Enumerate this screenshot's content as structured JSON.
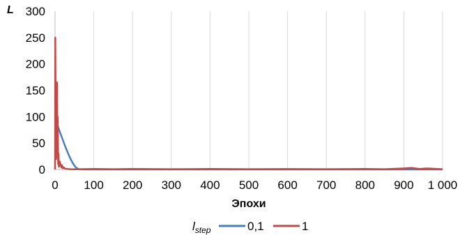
{
  "chart_data": {
    "type": "line",
    "ylabel": "L",
    "xlabel": "Эпохи",
    "xlim": [
      0,
      1000
    ],
    "ylim": [
      0,
      300
    ],
    "x_ticks": [
      0,
      100,
      200,
      300,
      400,
      500,
      600,
      700,
      800,
      900,
      1000
    ],
    "x_tick_labels": [
      "0",
      "100",
      "200",
      "300",
      "400",
      "500",
      "600",
      "700",
      "800",
      "900",
      "1 000"
    ],
    "y_ticks": [
      0,
      50,
      100,
      150,
      200,
      250,
      300
    ],
    "y_tick_labels": [
      "0",
      "50",
      "100",
      "150",
      "200",
      "250",
      "300"
    ],
    "grid": "vertical",
    "legend": {
      "title_main": "l",
      "title_sub": "step",
      "placement": "bottom"
    },
    "series": [
      {
        "name": "0,1",
        "color": "#4a7ebb",
        "points": [
          [
            0,
            100
          ],
          [
            3,
            92
          ],
          [
            6,
            84
          ],
          [
            10,
            76
          ],
          [
            15,
            66
          ],
          [
            20,
            56
          ],
          [
            25,
            46
          ],
          [
            30,
            37
          ],
          [
            35,
            28
          ],
          [
            40,
            20
          ],
          [
            45,
            13
          ],
          [
            50,
            7
          ],
          [
            55,
            3
          ],
          [
            60,
            1
          ],
          [
            65,
            0.3
          ],
          [
            70,
            0.1
          ],
          [
            80,
            0
          ],
          [
            1000,
            0
          ]
        ]
      },
      {
        "name": "1",
        "color": "#be4b48",
        "points": [
          [
            0,
            0
          ],
          [
            0.5,
            250
          ],
          [
            1,
            180
          ],
          [
            1.5,
            60
          ],
          [
            2,
            40
          ],
          [
            3,
            20
          ],
          [
            4,
            50
          ],
          [
            5,
            165
          ],
          [
            6,
            30
          ],
          [
            7,
            100
          ],
          [
            8,
            10
          ],
          [
            9,
            30
          ],
          [
            10,
            5
          ],
          [
            12,
            15
          ],
          [
            14,
            10
          ],
          [
            16,
            4
          ],
          [
            18,
            8
          ],
          [
            20,
            2
          ],
          [
            22,
            4
          ],
          [
            25,
            2
          ],
          [
            30,
            1
          ],
          [
            40,
            0.5
          ],
          [
            50,
            0.3
          ],
          [
            100,
            1
          ],
          [
            150,
            0.5
          ],
          [
            200,
            1
          ],
          [
            300,
            0.5
          ],
          [
            400,
            1
          ],
          [
            500,
            0.5
          ],
          [
            600,
            0.8
          ],
          [
            700,
            0.5
          ],
          [
            800,
            1
          ],
          [
            850,
            0.5
          ],
          [
            900,
            2
          ],
          [
            920,
            3
          ],
          [
            940,
            1
          ],
          [
            960,
            2
          ],
          [
            1000,
            0.5
          ]
        ]
      }
    ]
  }
}
